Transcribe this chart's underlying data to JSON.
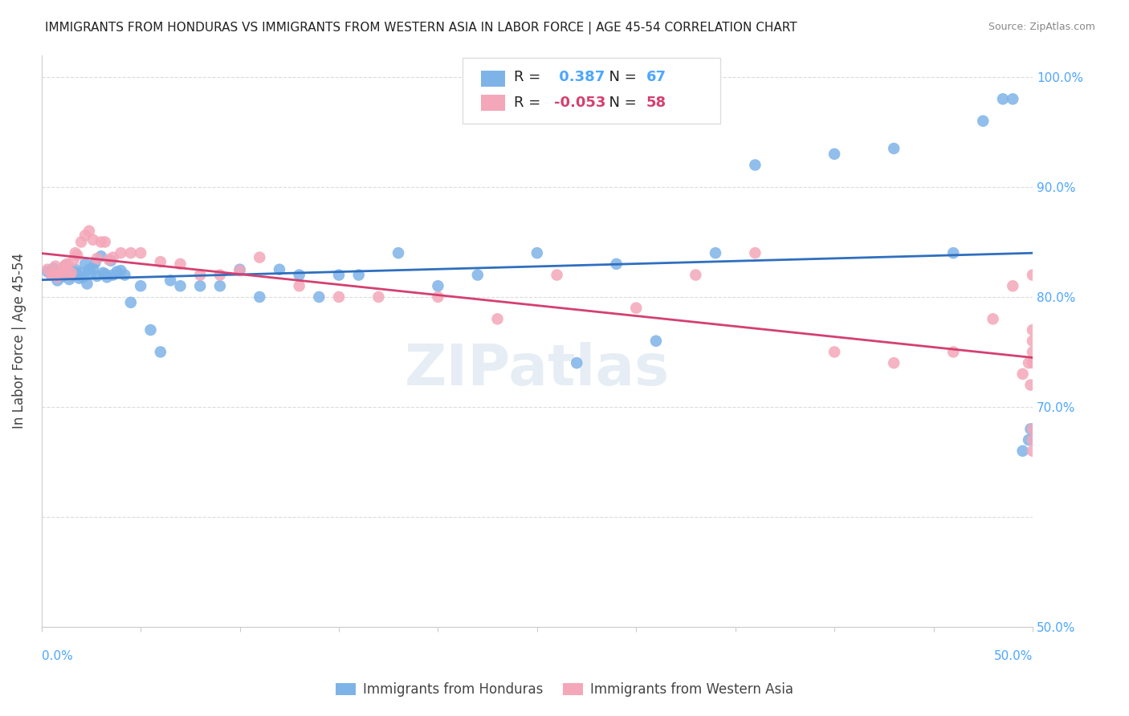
{
  "title": "IMMIGRANTS FROM HONDURAS VS IMMIGRANTS FROM WESTERN ASIA IN LABOR FORCE | AGE 45-54 CORRELATION CHART",
  "source": "Source: ZipAtlas.com",
  "ylabel": "In Labor Force | Age 45-54",
  "x_min": 0.0,
  "x_max": 0.5,
  "y_min": 0.5,
  "y_max": 1.02,
  "legend_R_blue": "0.387",
  "legend_N_blue": "67",
  "legend_R_pink": "-0.053",
  "legend_N_pink": "58",
  "legend_label_blue": "Immigrants from Honduras",
  "legend_label_pink": "Immigrants from Western Asia",
  "blue_color": "#7EB3E8",
  "pink_color": "#F4A7B9",
  "blue_line_color": "#2F6FBF",
  "pink_line_color": "#D44070",
  "axis_label_color": "#4DA6FF",
  "watermark": "ZIPatlas",
  "blue_x": [
    0.003,
    0.005,
    0.006,
    0.007,
    0.008,
    0.009,
    0.01,
    0.011,
    0.012,
    0.013,
    0.014,
    0.015,
    0.016,
    0.017,
    0.018,
    0.019,
    0.02,
    0.021,
    0.022,
    0.023,
    0.024,
    0.025,
    0.026,
    0.027,
    0.028,
    0.03,
    0.031,
    0.032,
    0.033,
    0.035,
    0.036,
    0.038,
    0.04,
    0.042,
    0.045,
    0.05,
    0.055,
    0.06,
    0.065,
    0.07,
    0.08,
    0.09,
    0.1,
    0.11,
    0.12,
    0.13,
    0.14,
    0.15,
    0.16,
    0.18,
    0.2,
    0.22,
    0.25,
    0.27,
    0.29,
    0.31,
    0.34,
    0.36,
    0.4,
    0.43,
    0.46,
    0.475,
    0.485,
    0.49,
    0.495,
    0.498,
    0.499
  ],
  "blue_y": [
    0.823,
    0.82,
    0.826,
    0.819,
    0.815,
    0.822,
    0.818,
    0.822,
    0.828,
    0.821,
    0.816,
    0.819,
    0.823,
    0.825,
    0.82,
    0.817,
    0.822,
    0.818,
    0.83,
    0.812,
    0.825,
    0.821,
    0.826,
    0.831,
    0.819,
    0.837,
    0.822,
    0.821,
    0.818,
    0.833,
    0.82,
    0.823,
    0.824,
    0.82,
    0.795,
    0.81,
    0.77,
    0.75,
    0.815,
    0.81,
    0.81,
    0.81,
    0.825,
    0.8,
    0.825,
    0.82,
    0.8,
    0.82,
    0.82,
    0.84,
    0.81,
    0.82,
    0.84,
    0.74,
    0.83,
    0.76,
    0.84,
    0.92,
    0.93,
    0.935,
    0.84,
    0.96,
    0.98,
    0.98,
    0.66,
    0.67,
    0.68
  ],
  "pink_x": [
    0.003,
    0.005,
    0.006,
    0.007,
    0.008,
    0.009,
    0.01,
    0.011,
    0.012,
    0.013,
    0.014,
    0.015,
    0.016,
    0.017,
    0.018,
    0.02,
    0.022,
    0.024,
    0.026,
    0.028,
    0.03,
    0.032,
    0.034,
    0.036,
    0.04,
    0.045,
    0.05,
    0.06,
    0.07,
    0.08,
    0.09,
    0.1,
    0.11,
    0.13,
    0.15,
    0.17,
    0.2,
    0.23,
    0.26,
    0.3,
    0.33,
    0.36,
    0.4,
    0.43,
    0.46,
    0.48,
    0.49,
    0.495,
    0.498,
    0.499,
    0.5,
    0.5,
    0.5,
    0.5,
    0.5,
    0.5,
    0.5,
    0.5
  ],
  "pink_y": [
    0.825,
    0.82,
    0.82,
    0.828,
    0.818,
    0.82,
    0.822,
    0.826,
    0.829,
    0.83,
    0.82,
    0.822,
    0.833,
    0.84,
    0.838,
    0.85,
    0.856,
    0.86,
    0.852,
    0.835,
    0.85,
    0.85,
    0.834,
    0.836,
    0.84,
    0.84,
    0.84,
    0.832,
    0.83,
    0.82,
    0.82,
    0.824,
    0.836,
    0.81,
    0.8,
    0.8,
    0.8,
    0.78,
    0.82,
    0.79,
    0.82,
    0.84,
    0.75,
    0.74,
    0.75,
    0.78,
    0.81,
    0.73,
    0.74,
    0.72,
    0.75,
    0.76,
    0.77,
    0.74,
    0.68,
    0.82,
    0.66,
    0.67
  ]
}
